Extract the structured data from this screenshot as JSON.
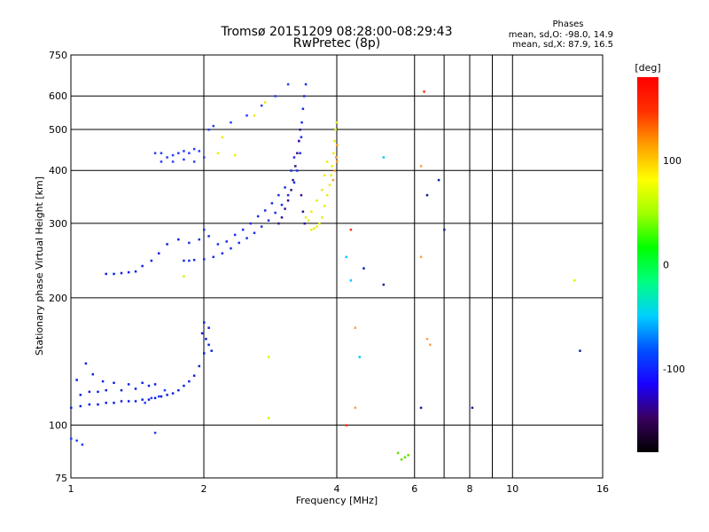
{
  "chart_data": {
    "type": "scatter",
    "title": "Tromsø 20151209 08:28:00-08:29:43",
    "subtitle": "RwPretec (8p)",
    "stats": {
      "heading": "Phases",
      "line_o": "mean, sd,O: -98.0, 14.9",
      "line_x": "mean, sd,X:  87.9, 16.5"
    },
    "xlabel": "Frequency [MHz]",
    "ylabel": "Stationary phase Virtual Height [km]",
    "x_scale": "log",
    "y_scale": "log",
    "xlim": [
      1,
      16
    ],
    "ylim": [
      75,
      750
    ],
    "x_ticks": [
      1,
      2,
      4,
      6,
      8,
      10,
      16
    ],
    "x_tick_labels": [
      "1",
      "2",
      "4",
      "6",
      "8",
      "10",
      "16"
    ],
    "x_grid": [
      2,
      4,
      6,
      7,
      8,
      9,
      10
    ],
    "y_ticks": [
      75,
      100,
      200,
      300,
      400,
      500,
      600,
      750
    ],
    "y_tick_labels": [
      "75",
      "100",
      "200",
      "300",
      "400",
      "500",
      "600",
      "750"
    ],
    "y_grid": [
      100,
      200,
      300,
      400,
      500,
      600
    ],
    "grid": true,
    "colorbar": {
      "unit_label": "[deg]",
      "min": -180,
      "max": 180,
      "ticks": [
        100,
        0,
        -100
      ],
      "tick_labels": [
        "100",
        "0",
        "-100"
      ],
      "colors": [
        "#000000",
        "#3a0060",
        "#1a00ff",
        "#0050ff",
        "#00d0ff",
        "#00ff80",
        "#00ff00",
        "#a0ff00",
        "#ffff00",
        "#ffa000",
        "#ff3000",
        "#ff0000"
      ]
    },
    "series": [
      {
        "color": "#1020e0",
        "points": [
          [
            1.0,
            110
          ],
          [
            1.05,
            111
          ],
          [
            1.1,
            112
          ],
          [
            1.15,
            112
          ],
          [
            1.2,
            113
          ],
          [
            1.25,
            113
          ],
          [
            1.3,
            114
          ],
          [
            1.35,
            114
          ],
          [
            1.4,
            114
          ],
          [
            1.45,
            115
          ],
          [
            1.5,
            115
          ],
          [
            1.55,
            116
          ],
          [
            1.6,
            117
          ],
          [
            1.65,
            118
          ],
          [
            1.7,
            119
          ],
          [
            1.75,
            121
          ],
          [
            1.8,
            124
          ],
          [
            1.85,
            127
          ],
          [
            1.9,
            131
          ],
          [
            1.95,
            138
          ],
          [
            2.0,
            148
          ],
          [
            2.02,
            160
          ],
          [
            2.05,
            170
          ],
          [
            2.0,
            175
          ],
          [
            1.98,
            165
          ],
          [
            2.05,
            155
          ],
          [
            2.08,
            150
          ],
          [
            1.05,
            118
          ],
          [
            1.1,
            120
          ],
          [
            1.15,
            120
          ],
          [
            1.2,
            121
          ],
          [
            1.3,
            121
          ],
          [
            1.4,
            122
          ],
          [
            1.5,
            124
          ],
          [
            1.03,
            128
          ],
          [
            1.08,
            140
          ],
          [
            1.12,
            132
          ],
          [
            1.18,
            127
          ],
          [
            1.25,
            126
          ],
          [
            1.35,
            125
          ],
          [
            1.45,
            126
          ],
          [
            1.55,
            125
          ]
        ]
      },
      {
        "color": "#2040ff",
        "points": [
          [
            1.0,
            93
          ],
          [
            1.03,
            92
          ],
          [
            1.06,
            90
          ],
          [
            1.55,
            96
          ],
          [
            1.47,
            113
          ],
          [
            1.52,
            116
          ],
          [
            1.58,
            117
          ],
          [
            1.63,
            121
          ]
        ]
      },
      {
        "color": "#1020e0",
        "points": [
          [
            1.2,
            228
          ],
          [
            1.25,
            228
          ],
          [
            1.3,
            229
          ],
          [
            1.35,
            230
          ],
          [
            1.4,
            231
          ],
          [
            1.45,
            238
          ],
          [
            1.52,
            245
          ],
          [
            1.58,
            255
          ],
          [
            1.65,
            268
          ],
          [
            1.75,
            275
          ]
        ]
      },
      {
        "color": "#1a2ee8",
        "points": [
          [
            1.8,
            245
          ],
          [
            1.85,
            245
          ],
          [
            1.9,
            246
          ],
          [
            2.0,
            247
          ],
          [
            2.1,
            250
          ],
          [
            2.2,
            255
          ],
          [
            2.3,
            262
          ],
          [
            2.4,
            270
          ],
          [
            2.5,
            277
          ],
          [
            2.6,
            285
          ],
          [
            2.7,
            295
          ],
          [
            2.8,
            305
          ],
          [
            2.9,
            318
          ],
          [
            3.0,
            332
          ],
          [
            3.1,
            350
          ],
          [
            3.2,
            375
          ],
          [
            3.25,
            400
          ],
          [
            3.3,
            440
          ],
          [
            3.32,
            480
          ],
          [
            3.33,
            520
          ],
          [
            3.35,
            560
          ],
          [
            3.37,
            600
          ],
          [
            3.4,
            640
          ],
          [
            1.85,
            270
          ],
          [
            1.95,
            275
          ],
          [
            2.0,
            290
          ],
          [
            2.05,
            280
          ],
          [
            2.15,
            268
          ],
          [
            2.25,
            272
          ],
          [
            2.35,
            282
          ],
          [
            2.45,
            290
          ],
          [
            2.55,
            300
          ],
          [
            2.65,
            312
          ],
          [
            2.75,
            322
          ],
          [
            2.85,
            335
          ],
          [
            2.95,
            350
          ],
          [
            3.05,
            365
          ],
          [
            3.15,
            400
          ],
          [
            3.2,
            430
          ],
          [
            3.28,
            470
          ]
        ]
      },
      {
        "color": "#3a1090",
        "points": [
          [
            2.95,
            300
          ],
          [
            3.0,
            310
          ],
          [
            3.05,
            325
          ],
          [
            3.1,
            340
          ],
          [
            3.15,
            360
          ],
          [
            3.18,
            380
          ],
          [
            3.22,
            410
          ],
          [
            3.25,
            440
          ],
          [
            3.28,
            470
          ],
          [
            3.3,
            500
          ],
          [
            3.32,
            350
          ],
          [
            3.35,
            320
          ],
          [
            3.38,
            300
          ]
        ]
      },
      {
        "color": "#2a3cff",
        "points": [
          [
            1.55,
            440
          ],
          [
            1.6,
            440
          ],
          [
            1.65,
            430
          ],
          [
            1.7,
            435
          ],
          [
            1.75,
            440
          ],
          [
            1.8,
            445
          ],
          [
            1.85,
            440
          ],
          [
            1.9,
            450
          ],
          [
            1.95,
            445
          ],
          [
            2.0,
            430
          ],
          [
            1.6,
            420
          ],
          [
            1.7,
            420
          ],
          [
            1.8,
            425
          ],
          [
            1.9,
            420
          ],
          [
            2.05,
            500
          ],
          [
            2.1,
            510
          ],
          [
            2.3,
            520
          ],
          [
            2.5,
            540
          ],
          [
            2.7,
            570
          ],
          [
            2.9,
            600
          ],
          [
            3.1,
            640
          ]
        ]
      },
      {
        "color": "#e8ee10",
        "points": [
          [
            3.5,
            290
          ],
          [
            3.55,
            292
          ],
          [
            3.6,
            295
          ],
          [
            3.65,
            300
          ],
          [
            3.7,
            310
          ],
          [
            3.75,
            330
          ],
          [
            3.8,
            350
          ],
          [
            3.85,
            370
          ],
          [
            3.88,
            390
          ],
          [
            3.9,
            410
          ],
          [
            3.93,
            440
          ],
          [
            3.95,
            470
          ],
          [
            3.97,
            500
          ],
          [
            3.99,
            520
          ],
          [
            3.4,
            310
          ],
          [
            3.45,
            305
          ],
          [
            3.5,
            320
          ],
          [
            3.6,
            340
          ],
          [
            3.7,
            360
          ],
          [
            3.75,
            390
          ],
          [
            3.8,
            420
          ],
          [
            2.2,
            480
          ],
          [
            2.15,
            440
          ],
          [
            2.35,
            435
          ],
          [
            2.6,
            540
          ],
          [
            2.75,
            580
          ]
        ]
      },
      {
        "color": "#ffa020",
        "points": [
          [
            3.95,
            400
          ],
          [
            3.98,
            430
          ],
          [
            4.0,
            460
          ],
          [
            3.92,
            380
          ],
          [
            4.0,
            420
          ]
        ]
      },
      {
        "color": "#ff3010",
        "points": [
          [
            4.3,
            290
          ],
          [
            6.3,
            615
          ],
          [
            4.2,
            100
          ]
        ]
      },
      {
        "color": "#00c8ff",
        "points": [
          [
            4.3,
            220
          ],
          [
            4.5,
            145
          ],
          [
            5.1,
            430
          ],
          [
            4.2,
            250
          ]
        ]
      },
      {
        "color": "#60e000",
        "points": [
          [
            5.6,
            83
          ],
          [
            5.7,
            84
          ],
          [
            5.8,
            85
          ],
          [
            5.5,
            86
          ]
        ]
      },
      {
        "color": "#ffa040",
        "points": [
          [
            4.4,
            170
          ],
          [
            6.4,
            160
          ],
          [
            6.5,
            155
          ],
          [
            4.4,
            110
          ],
          [
            6.2,
            410
          ],
          [
            6.2,
            250
          ]
        ]
      },
      {
        "color": "#1020a0",
        "points": [
          [
            6.2,
            110
          ],
          [
            7.0,
            290
          ],
          [
            8.1,
            110
          ],
          [
            5.1,
            215
          ],
          [
            4.6,
            235
          ],
          [
            14.2,
            150
          ],
          [
            6.4,
            350
          ],
          [
            6.8,
            380
          ]
        ]
      },
      {
        "color": "#c8ff00",
        "points": [
          [
            2.8,
            104
          ],
          [
            13.8,
            220
          ],
          [
            2.8,
            145
          ],
          [
            1.8,
            225
          ]
        ]
      }
    ]
  }
}
